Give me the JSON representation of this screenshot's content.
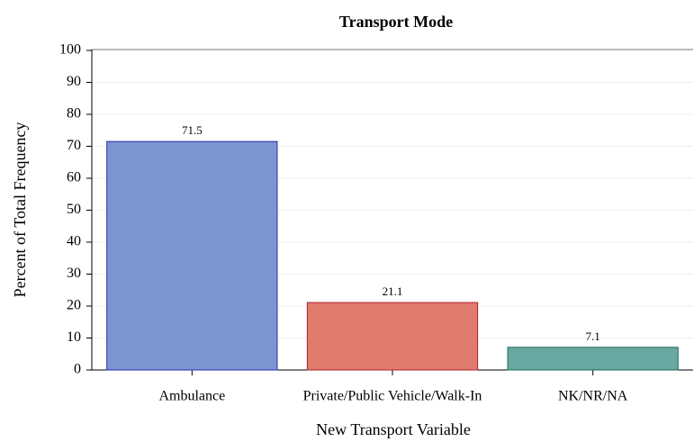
{
  "chart_data": {
    "type": "bar",
    "title": "Transport Mode",
    "xlabel": "New Transport Variable",
    "ylabel": "Percent of Total Frequency",
    "categories": [
      "Ambulance",
      "Private/Public Vehicle/Walk-In",
      "NK/NR/NA"
    ],
    "values": [
      71.5,
      21.1,
      7.1
    ],
    "colors": [
      "#7b96cf",
      "#e07b6e",
      "#68a8a0"
    ],
    "edge_colors": [
      "#2a2ab0",
      "#b02030",
      "#206860"
    ],
    "ylim": [
      0,
      100
    ],
    "yticks": [
      0,
      10,
      20,
      30,
      40,
      50,
      60,
      70,
      80,
      90,
      100
    ],
    "grid": true
  }
}
